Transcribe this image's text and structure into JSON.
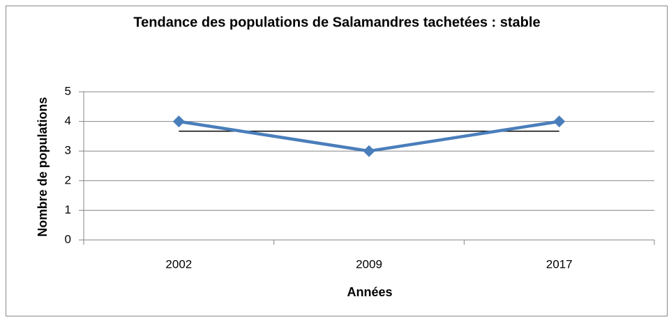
{
  "chart_data": {
    "type": "line",
    "title": "Tendance des populations de Salamandres tachetées : stable",
    "x_label": "Années",
    "y_label": "Nombre de populations",
    "categories": [
      "2002",
      "2009",
      "2017"
    ],
    "values": [
      4,
      3,
      4
    ],
    "color": "#4a7ebb",
    "trend_line": {
      "color": "#000000",
      "values": [
        3.67,
        3.67,
        3.67
      ]
    },
    "ylim": [
      0,
      5
    ],
    "yticks": [
      0,
      1,
      2,
      3,
      4,
      5
    ],
    "grid": true
  }
}
